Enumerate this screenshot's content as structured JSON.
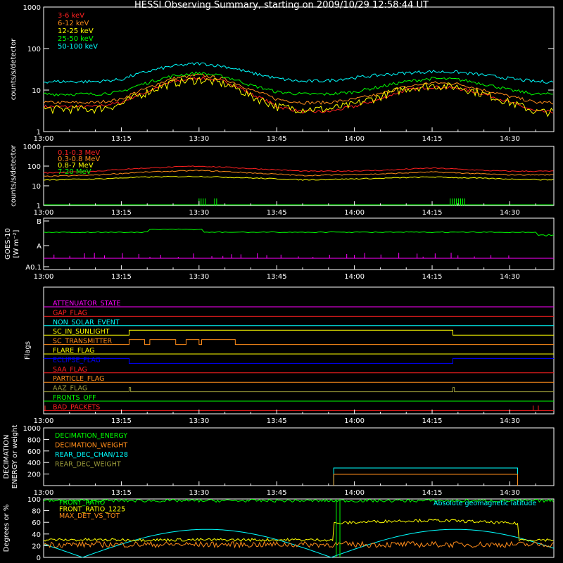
{
  "title": "HESSI Observing Summary, starting on 2009/10/29 12:58:44 UT",
  "colors": {
    "background": "#000000",
    "axes": "#ffffff",
    "red": "#ff2020",
    "orange": "#ff8c1a",
    "yellow": "#ffff00",
    "green": "#00ff00",
    "cyan": "#00ffff",
    "magenta": "#ff00ff",
    "blue": "#0000ff",
    "olive": "#9a9a3a",
    "pink": "#ff4fa0"
  },
  "time_axis": {
    "tick_labels": [
      "13:00",
      "13:15",
      "13:30",
      "13:45",
      "14:00",
      "14:15",
      "14:30"
    ],
    "range_minutes": [
      0,
      98.5
    ]
  },
  "chart_data": [
    {
      "id": "panel-counts-low",
      "type": "line",
      "log_y": true,
      "ylabel": "counts/s/detector",
      "ylim": [
        1,
        1000
      ],
      "y_tick_labels": [
        "1",
        "10",
        "100",
        "1000"
      ],
      "series": [
        {
          "name": "3-6 keV",
          "color": "#ff2020",
          "x": [
            0,
            5,
            10,
            15,
            20,
            25,
            30,
            35,
            40,
            45,
            50,
            55,
            60,
            65,
            70,
            75,
            80,
            85,
            90,
            95,
            98
          ],
          "values": [
            4,
            4,
            4,
            5,
            9,
            16,
            20,
            16,
            8,
            4,
            3,
            3,
            4,
            6,
            10,
            12,
            11,
            8,
            5,
            3,
            3
          ]
        },
        {
          "name": "6-12 keV",
          "color": "#ff8c1a",
          "x": [
            0,
            5,
            10,
            15,
            20,
            25,
            30,
            35,
            40,
            45,
            50,
            55,
            60,
            65,
            70,
            75,
            80,
            85,
            90,
            95,
            98
          ],
          "values": [
            5,
            5,
            5,
            6,
            11,
            19,
            23,
            18,
            10,
            6,
            5,
            5,
            6,
            8,
            12,
            15,
            14,
            10,
            7,
            5,
            5
          ]
        },
        {
          "name": "12-25 keV",
          "color": "#ffff00",
          "x": [
            0,
            5,
            10,
            15,
            20,
            25,
            30,
            35,
            40,
            45,
            50,
            55,
            60,
            65,
            70,
            75,
            80,
            85,
            90,
            95,
            98
          ],
          "values": [
            3.5,
            3.5,
            3.5,
            4.5,
            9,
            15,
            18,
            14,
            7,
            4,
            3.5,
            3.5,
            4.5,
            7,
            11,
            13,
            12,
            8,
            5,
            3,
            3
          ]
        },
        {
          "name": "25-50 keV",
          "color": "#00ff00",
          "x": [
            0,
            5,
            10,
            15,
            20,
            25,
            30,
            35,
            40,
            45,
            50,
            55,
            60,
            65,
            70,
            75,
            80,
            85,
            90,
            95,
            98
          ],
          "values": [
            8,
            8,
            8,
            9,
            15,
            22,
            26,
            21,
            13,
            9,
            8,
            8,
            9,
            12,
            16,
            19,
            18,
            14,
            10,
            8,
            8
          ]
        },
        {
          "name": "50-100 keV",
          "color": "#00ffff",
          "x": [
            0,
            5,
            10,
            15,
            20,
            25,
            30,
            35,
            40,
            45,
            50,
            55,
            60,
            65,
            70,
            75,
            80,
            85,
            90,
            95,
            98
          ],
          "values": [
            16,
            16,
            16,
            18,
            28,
            38,
            44,
            37,
            26,
            19,
            16,
            17,
            20,
            23,
            26,
            28,
            27,
            23,
            19,
            16,
            16
          ]
        }
      ]
    },
    {
      "id": "panel-counts-high",
      "type": "line",
      "log_y": true,
      "ylabel": "counts/s/detector",
      "ylim": [
        1,
        1000
      ],
      "y_tick_labels": [
        "1",
        "10",
        "100",
        "1000"
      ],
      "series": [
        {
          "name": "0.1-0.3 MeV",
          "color": "#ff2020",
          "x": [
            0,
            10,
            20,
            30,
            40,
            50,
            55,
            65,
            75,
            85,
            90,
            98
          ],
          "values": [
            45,
            55,
            80,
            100,
            75,
            55,
            55,
            60,
            80,
            60,
            55,
            55
          ]
        },
        {
          "name": "0.3-0.8 MeV",
          "color": "#ff8c1a",
          "x": [
            0,
            10,
            20,
            30,
            40,
            50,
            55,
            65,
            75,
            85,
            90,
            98
          ],
          "values": [
            30,
            35,
            50,
            60,
            45,
            33,
            35,
            40,
            50,
            40,
            36,
            36
          ]
        },
        {
          "name": "0.8-7 MeV",
          "color": "#ffff00",
          "x": [
            0,
            10,
            20,
            30,
            40,
            50,
            55,
            65,
            75,
            85,
            90,
            98
          ],
          "values": [
            20,
            22,
            28,
            30,
            25,
            20,
            21,
            24,
            28,
            24,
            22,
            20
          ]
        },
        {
          "name": "7-20 MeV",
          "color": "#00ff00",
          "x": [
            0,
            98
          ],
          "values": [
            1,
            1
          ]
        }
      ]
    },
    {
      "id": "panel-goes",
      "type": "line",
      "log_y": true,
      "ylabel": "GOES-10 [W m⁻²]",
      "y_tick_labels": [
        "B",
        "A",
        "A0.1"
      ],
      "series": [
        {
          "name": "",
          "color": "#00ff00",
          "x": [
            0,
            19,
            20,
            30,
            31,
            94,
            96,
            98
          ],
          "values": [
            2,
            2,
            2.8,
            2.8,
            2,
            2,
            1.5,
            1.5
          ]
        },
        {
          "name": "",
          "color": "#ff00ff",
          "x": [
            0,
            98
          ],
          "values": [
            0.15,
            0.15
          ]
        }
      ]
    }
  ],
  "flags_panel": {
    "ylabel": "Flags",
    "flags": [
      {
        "name": "ATTENUATOR_STATE",
        "color": "#ff00ff"
      },
      {
        "name": "GAP_FLAG",
        "color": "#ff2020"
      },
      {
        "name": "NON_SOLAR_EVENT",
        "color": "#00ffff"
      },
      {
        "name": "SC_IN_SUNLIGHT",
        "color": "#ffff00"
      },
      {
        "name": "SC_TRANSMITTER",
        "color": "#ff8c1a"
      },
      {
        "name": "FLARE_FLAG",
        "color": "#ffff00"
      },
      {
        "name": "ECLIPSE_FLAG",
        "color": "#0000ff"
      },
      {
        "name": "SAA_FLAG",
        "color": "#ff2020"
      },
      {
        "name": "PARTICLE_FLAG",
        "color": "#ff8c1a"
      },
      {
        "name": "AAZ_FLAG",
        "color": "#9a9a3a"
      },
      {
        "name": "FRONTS_OFF",
        "color": "#00ff00"
      },
      {
        "name": "BAD_PACKETS",
        "color": "#ff2020"
      }
    ]
  },
  "decimation_panel": {
    "ylabel": "DECIMATION ENERGY or weight",
    "y_tick_labels": [
      "0",
      "200",
      "400",
      "600",
      "800",
      "1000"
    ],
    "legend": [
      {
        "name": "DECIMATION_ENERGY",
        "color": "#00ff00"
      },
      {
        "name": "DECIMATION_WEIGHT",
        "color": "#ff8c1a"
      },
      {
        "name": "REAR_DEC_CHAN/128",
        "color": "#00ffff"
      },
      {
        "name": "REAR_DEC_WEIGHT",
        "color": "#9a9a3a"
      }
    ]
  },
  "ephemeris_panel": {
    "ylabel": "Degrees or %",
    "y_tick_labels": [
      "0",
      "20",
      "40",
      "60",
      "80",
      "100"
    ],
    "legend": [
      {
        "name": "FRONT_RATIO",
        "color": "#00ff00"
      },
      {
        "name": "FRONT_RATIO_1225",
        "color": "#ffff00"
      },
      {
        "name": "MAX_DET_VS_TOT",
        "color": "#ff8c1a"
      }
    ],
    "note": {
      "text": "Absolute geomagnetic latitude",
      "color": "#00ffff"
    }
  }
}
